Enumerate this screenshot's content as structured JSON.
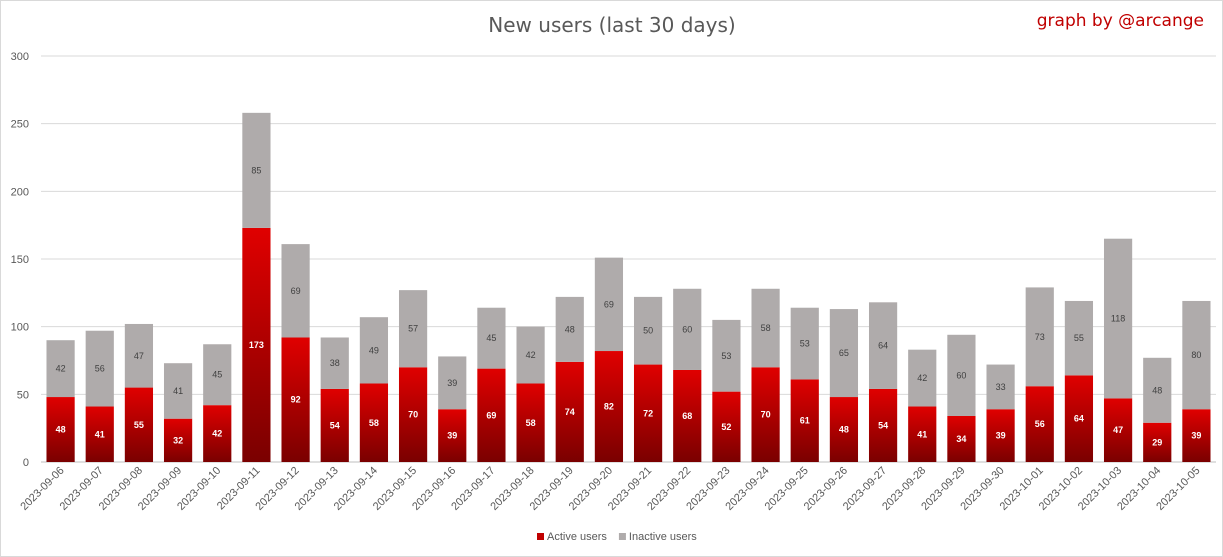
{
  "chart_data": {
    "type": "bar",
    "stacked": true,
    "title": "New users (last 30 days)",
    "credit": "graph by @arcange",
    "xlabel": "",
    "ylabel": "",
    "ylim": [
      0,
      300
    ],
    "yticks": [
      0,
      50,
      100,
      150,
      200,
      250,
      300
    ],
    "grid": true,
    "legend_position": "bottom",
    "categories": [
      "2023-09-06",
      "2023-09-07",
      "2023-09-08",
      "2023-09-09",
      "2023-09-10",
      "2023-09-11",
      "2023-09-12",
      "2023-09-13",
      "2023-09-14",
      "2023-09-15",
      "2023-09-16",
      "2023-09-17",
      "2023-09-18",
      "2023-09-19",
      "2023-09-20",
      "2023-09-21",
      "2023-09-22",
      "2023-09-23",
      "2023-09-24",
      "2023-09-25",
      "2023-09-26",
      "2023-09-27",
      "2023-09-28",
      "2023-09-29",
      "2023-09-30",
      "2023-10-01",
      "2023-10-02",
      "2023-10-03",
      "2023-10-04",
      "2023-10-05"
    ],
    "series": [
      {
        "name": "Active users",
        "color": "#c00000",
        "values": [
          48,
          41,
          55,
          32,
          42,
          173,
          92,
          54,
          58,
          70,
          39,
          69,
          58,
          74,
          82,
          72,
          68,
          52,
          70,
          61,
          48,
          54,
          41,
          34,
          39,
          56,
          64,
          47,
          29,
          39
        ]
      },
      {
        "name": "Inactive users",
        "color": "#afabab",
        "values": [
          42,
          56,
          47,
          41,
          45,
          85,
          69,
          38,
          49,
          57,
          39,
          45,
          42,
          48,
          69,
          50,
          60,
          53,
          58,
          53,
          65,
          64,
          42,
          60,
          33,
          73,
          55,
          118,
          48,
          80
        ]
      }
    ]
  }
}
